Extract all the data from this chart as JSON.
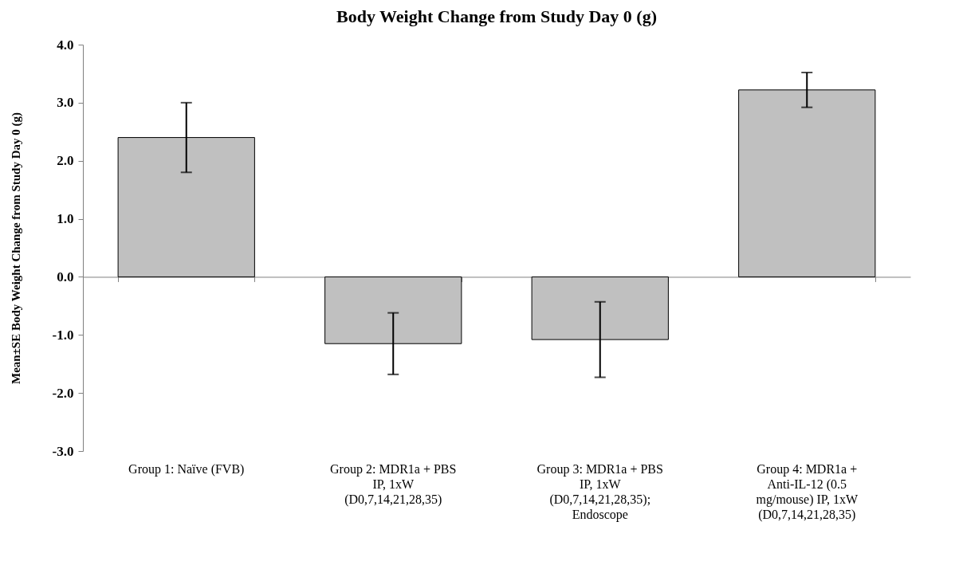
{
  "chart_data": {
    "type": "bar",
    "title": "Body Weight Change from Study Day 0 (g)",
    "ylabel": "Mean±SE Body Weight Change from Study Day 0 (g)",
    "categories": [
      "Group 1: Naïve (FVB)",
      "Group 2: MDR1a + PBS IP, 1xW (D0,7,14,21,28,35)",
      "Group 3: MDR1a + PBS IP, 1xW (D0,7,14,21,28,35); Endoscope",
      "Group 4: MDR1a + Anti-IL-12 (0.5 mg/mouse) IP, 1xW (D0,7,14,21,28,35)"
    ],
    "values": [
      2.4,
      -1.15,
      -1.08,
      3.22
    ],
    "errors": [
      0.6,
      0.53,
      0.65,
      0.3
    ],
    "color": "#c0c0c0",
    "ylim": [
      -3,
      4
    ],
    "yticks": [
      {
        "value": -3,
        "label": "-3.0"
      },
      {
        "value": -2,
        "label": "-2.0"
      },
      {
        "value": -1,
        "label": "-1.0"
      },
      {
        "value": 0,
        "label": "0.0"
      },
      {
        "value": 1,
        "label": "1.0"
      },
      {
        "value": 2,
        "label": "2.0"
      },
      {
        "value": 3,
        "label": "3.0"
      },
      {
        "value": 4,
        "label": "4.0"
      }
    ]
  }
}
